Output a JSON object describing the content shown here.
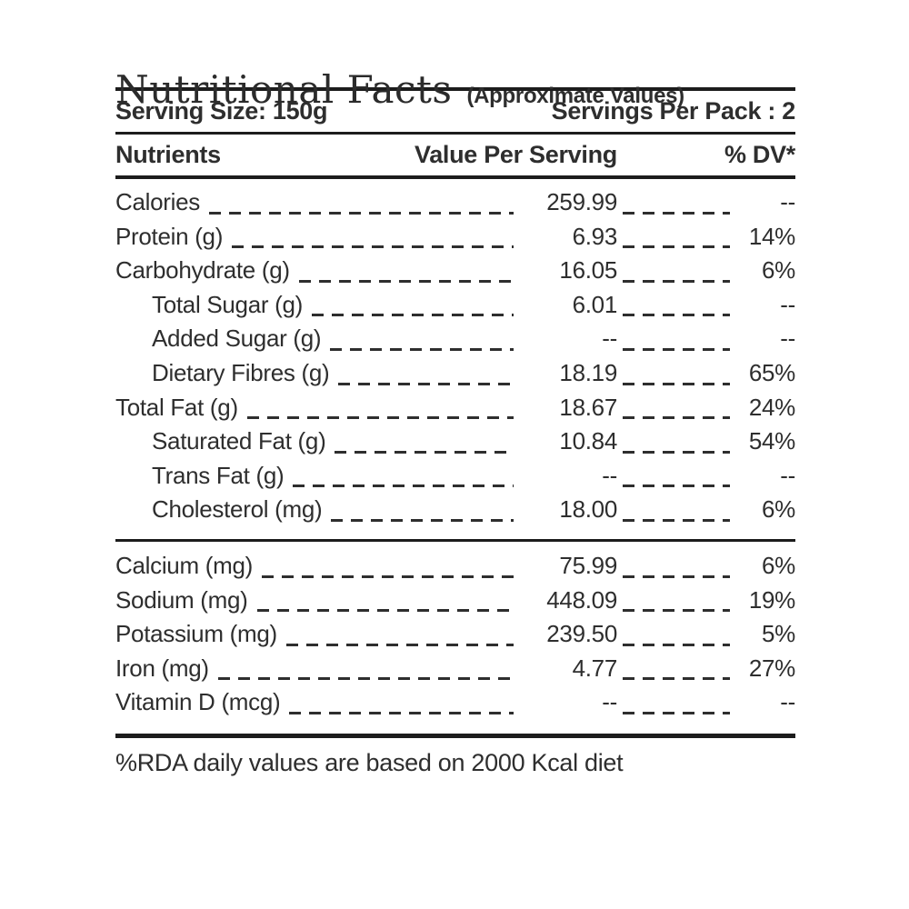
{
  "title": "Nutritional Facts",
  "subtitle": "(Approximate Values)",
  "serving_row": {
    "left": "Serving Size: 150g",
    "right": "Servings Per Pack : 2"
  },
  "header_row": {
    "nutrients": "Nutrients",
    "value": "Value Per Serving",
    "dv": "% DV*"
  },
  "sections": [
    {
      "rows": [
        {
          "label": "Calories",
          "value": "259.99",
          "dv": "--",
          "indent": false
        },
        {
          "label": "Protein (g)",
          "value": "6.93",
          "dv": "14%",
          "indent": false
        },
        {
          "label": "Carbohydrate (g)",
          "value": "16.05",
          "dv": "6%",
          "indent": false
        },
        {
          "label": "Total Sugar (g)",
          "value": "6.01",
          "dv": "--",
          "indent": true
        },
        {
          "label": "Added Sugar (g)",
          "value": "--",
          "dv": "--",
          "indent": true
        },
        {
          "label": "Dietary Fibres (g)",
          "value": "18.19",
          "dv": "65%",
          "indent": true
        },
        {
          "label": "Total Fat (g)",
          "value": "18.67",
          "dv": "24%",
          "indent": false
        },
        {
          "label": "Saturated Fat (g)",
          "value": "10.84",
          "dv": "54%",
          "indent": true
        },
        {
          "label": "Trans Fat (g)",
          "value": "--",
          "dv": "--",
          "indent": true
        },
        {
          "label": "Cholesterol (mg)",
          "value": "18.00",
          "dv": "6%",
          "indent": true
        }
      ]
    },
    {
      "rows": [
        {
          "label": "Calcium (mg)",
          "value": "75.99",
          "dv": "6%",
          "indent": false
        },
        {
          "label": "Sodium (mg)",
          "value": "448.09",
          "dv": "19%",
          "indent": false
        },
        {
          "label": "Potassium (mg)",
          "value": "239.50",
          "dv": "5%",
          "indent": false
        },
        {
          "label": "Iron (mg)",
          "value": "4.77",
          "dv": "27%",
          "indent": false
        },
        {
          "label": "Vitamin D (mcg)",
          "value": "--",
          "dv": "--",
          "indent": false
        }
      ]
    }
  ],
  "footnote": "%RDA daily values are based on 2000 Kcal diet",
  "colors": {
    "ink": "#2e2e2e",
    "rule": "#1c1c1c",
    "background": "#ffffff"
  }
}
